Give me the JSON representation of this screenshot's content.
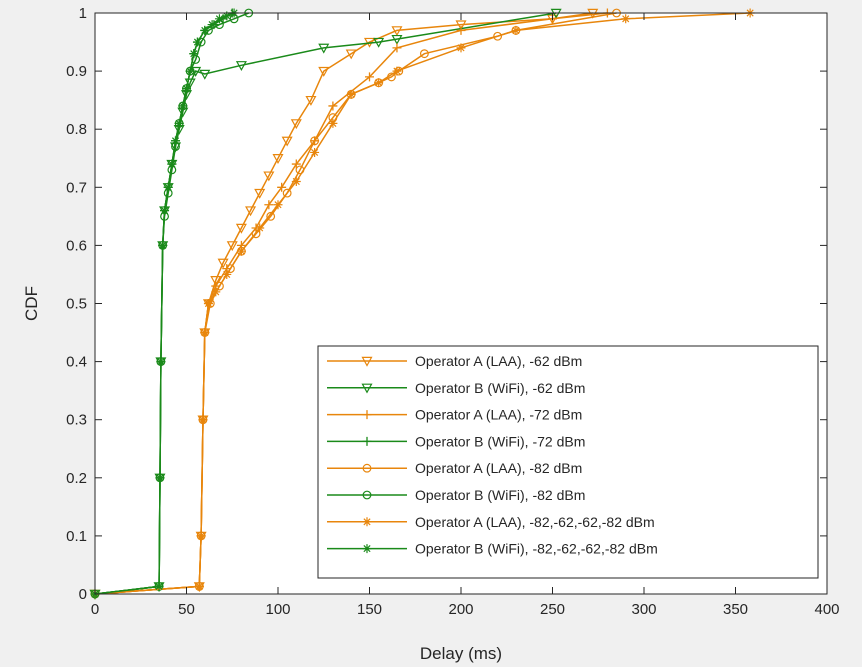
{
  "chart_data": {
    "type": "line",
    "title": "",
    "xlabel": "Delay (ms)",
    "ylabel": "CDF",
    "xlim": [
      0,
      400
    ],
    "ylim": [
      0,
      1
    ],
    "xticks": [
      "0",
      "50",
      "100",
      "150",
      "200",
      "250",
      "300",
      "350",
      "400"
    ],
    "yticks": [
      "0",
      "0.1",
      "0.2",
      "0.3",
      "0.4",
      "0.5",
      "0.6",
      "0.7",
      "0.8",
      "0.9",
      "1"
    ],
    "grid": false,
    "legend_position": "bottom-right",
    "colors": {
      "laa": "#E8860C",
      "wifi": "#1A8A1A"
    },
    "series": [
      {
        "name": "Operator A (LAA), -62 dBm",
        "color": "#E8860C",
        "marker": "triangle-down",
        "x": [
          0,
          57,
          58,
          59,
          60,
          62,
          66,
          70,
          75,
          80,
          85,
          90,
          95,
          100,
          105,
          110,
          118,
          125,
          140,
          150,
          165,
          200,
          250,
          272
        ],
        "y": [
          0,
          0.013,
          0.1,
          0.3,
          0.45,
          0.5,
          0.54,
          0.57,
          0.6,
          0.63,
          0.66,
          0.69,
          0.72,
          0.75,
          0.78,
          0.81,
          0.85,
          0.9,
          0.93,
          0.95,
          0.97,
          0.98,
          0.99,
          1
        ]
      },
      {
        "name": "Operator B (WiFi), -62 dBm",
        "color": "#1A8A1A",
        "marker": "triangle-down",
        "x": [
          0,
          35,
          35.5,
          36,
          37,
          38,
          40,
          42,
          44,
          46,
          48,
          50,
          52,
          55,
          60,
          80,
          125,
          155,
          165,
          252
        ],
        "y": [
          0,
          0.013,
          0.2,
          0.4,
          0.6,
          0.66,
          0.7,
          0.74,
          0.77,
          0.8,
          0.83,
          0.86,
          0.88,
          0.9,
          0.895,
          0.91,
          0.94,
          0.95,
          0.955,
          1
        ]
      },
      {
        "name": "Operator A (LAA), -72 dBm",
        "color": "#E8860C",
        "marker": "plus",
        "x": [
          0,
          57,
          58,
          59,
          60,
          62,
          66,
          72,
          80,
          88,
          95,
          102,
          110,
          120,
          130,
          150,
          165,
          200,
          250,
          280
        ],
        "y": [
          0,
          0.013,
          0.1,
          0.3,
          0.45,
          0.5,
          0.53,
          0.56,
          0.6,
          0.63,
          0.67,
          0.7,
          0.74,
          0.78,
          0.84,
          0.89,
          0.94,
          0.97,
          0.99,
          1
        ]
      },
      {
        "name": "Operator B (WiFi), -72 dBm",
        "color": "#1A8A1A",
        "marker": "plus",
        "x": [
          0,
          35,
          35.5,
          36,
          37,
          38,
          40,
          42,
          44,
          46,
          48,
          50,
          52,
          54,
          56,
          60,
          65,
          70,
          75
        ],
        "y": [
          0,
          0.013,
          0.2,
          0.4,
          0.6,
          0.66,
          0.7,
          0.74,
          0.78,
          0.81,
          0.84,
          0.87,
          0.9,
          0.93,
          0.95,
          0.97,
          0.98,
          0.99,
          1
        ]
      },
      {
        "name": "Operator A (LAA), -82 dBm",
        "color": "#E8860C",
        "marker": "circle",
        "x": [
          0,
          57,
          58,
          59,
          60,
          63,
          68,
          74,
          80,
          88,
          96,
          105,
          112,
          120,
          130,
          140,
          155,
          162,
          166,
          180,
          220,
          230,
          285
        ],
        "y": [
          0,
          0.013,
          0.1,
          0.3,
          0.45,
          0.5,
          0.53,
          0.56,
          0.59,
          0.62,
          0.65,
          0.69,
          0.73,
          0.78,
          0.82,
          0.86,
          0.88,
          0.89,
          0.9,
          0.93,
          0.96,
          0.97,
          1
        ]
      },
      {
        "name": "Operator B (WiFi), -82 dBm",
        "color": "#1A8A1A",
        "marker": "circle",
        "x": [
          0,
          35,
          35.5,
          36,
          37,
          38,
          40,
          42,
          44,
          46,
          48,
          50,
          52,
          55,
          58,
          62,
          68,
          76,
          84
        ],
        "y": [
          0,
          0.013,
          0.2,
          0.4,
          0.6,
          0.65,
          0.69,
          0.73,
          0.77,
          0.81,
          0.84,
          0.87,
          0.9,
          0.92,
          0.95,
          0.97,
          0.98,
          0.99,
          1
        ]
      },
      {
        "name": "Operator A (LAA), -82,-62,-62,-82 dBm",
        "color": "#E8860C",
        "marker": "asterisk",
        "x": [
          0,
          57,
          58,
          59,
          60,
          62,
          66,
          72,
          80,
          90,
          100,
          110,
          120,
          130,
          140,
          155,
          165,
          200,
          230,
          290,
          358
        ],
        "y": [
          0,
          0.013,
          0.1,
          0.3,
          0.45,
          0.5,
          0.52,
          0.55,
          0.59,
          0.63,
          0.67,
          0.71,
          0.76,
          0.81,
          0.86,
          0.88,
          0.9,
          0.94,
          0.97,
          0.99,
          1
        ]
      },
      {
        "name": "Operator B (WiFi), -82,-62,-62,-82  dBm",
        "color": "#1A8A1A",
        "marker": "asterisk",
        "x": [
          0,
          35,
          35.5,
          36,
          37,
          38,
          40,
          42,
          44,
          46,
          48,
          50,
          52,
          54,
          56,
          60,
          64,
          68,
          72,
          76
        ],
        "y": [
          0,
          0.013,
          0.2,
          0.4,
          0.6,
          0.66,
          0.7,
          0.74,
          0.78,
          0.81,
          0.84,
          0.87,
          0.9,
          0.93,
          0.95,
          0.97,
          0.98,
          0.99,
          0.995,
          1
        ]
      }
    ]
  }
}
